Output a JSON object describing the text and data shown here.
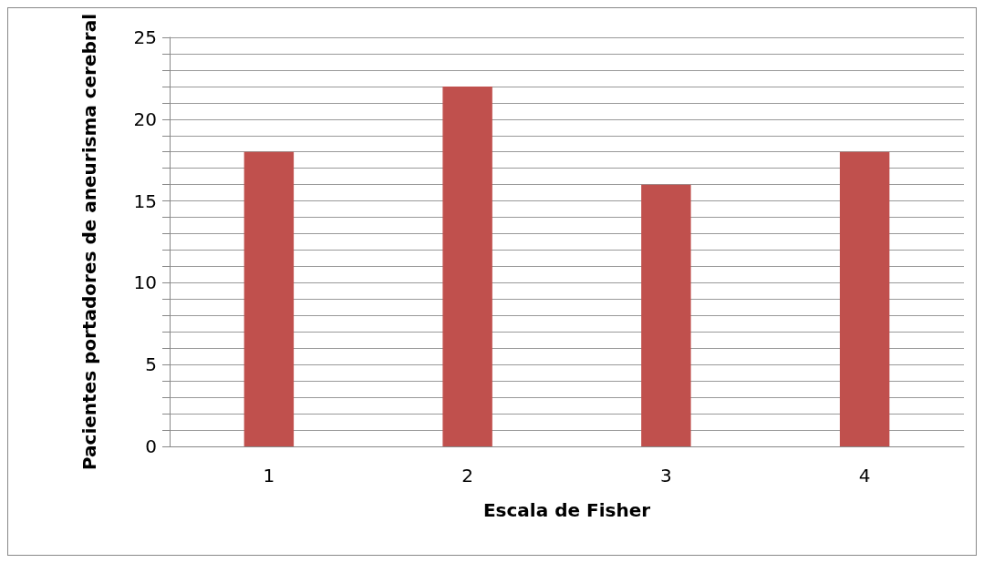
{
  "chart_data": {
    "type": "bar",
    "xlabel": "Escala de Fisher",
    "ylabel": "Pacientes portadores de aneurisma cerebral",
    "categories": [
      "1",
      "2",
      "3",
      "4"
    ],
    "values": [
      18,
      22,
      16,
      18
    ],
    "color": "#c0504d",
    "ylim": [
      0,
      25
    ],
    "yticks": [
      0,
      {
        "value": 1,
        "label": null
      },
      {
        "value": 2,
        "label": null
      },
      {
        "value": 3,
        "label": null
      },
      {
        "value": 4,
        "label": null
      },
      5,
      {
        "value": 6,
        "label": null
      },
      {
        "value": 7,
        "label": null
      },
      {
        "value": 8,
        "label": null
      },
      {
        "value": 9,
        "label": null
      },
      10,
      {
        "value": 11,
        "label": null
      },
      {
        "value": 12,
        "label": null
      },
      {
        "value": 13,
        "label": null
      },
      {
        "value": 14,
        "label": null
      },
      15,
      {
        "value": 16,
        "label": null
      },
      {
        "value": 17,
        "label": null
      },
      {
        "value": 18,
        "label": null
      },
      {
        "value": 19,
        "label": null
      },
      20,
      {
        "value": 21,
        "label": null
      },
      {
        "value": 22,
        "label": null
      },
      {
        "value": 23,
        "label": null
      },
      {
        "value": 24,
        "label": null
      },
      25
    ],
    "grid": "y"
  }
}
